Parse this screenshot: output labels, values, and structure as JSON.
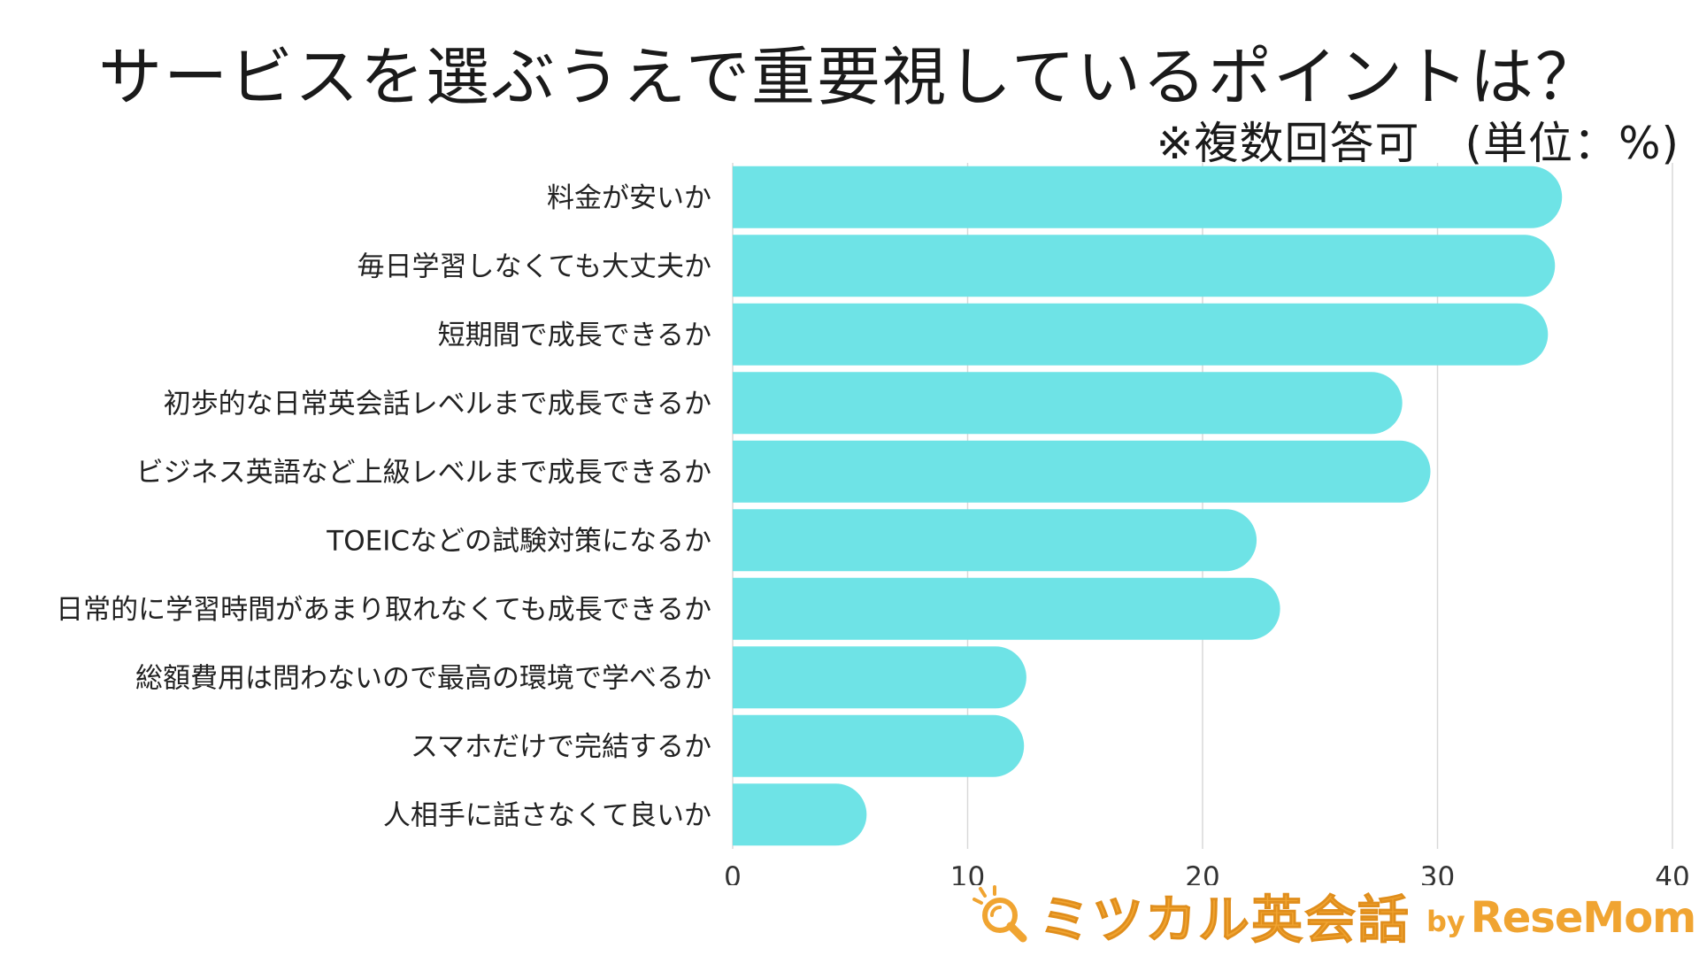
{
  "chart_data": {
    "type": "bar",
    "orientation": "horizontal",
    "title": "サービスを選ぶうえで重要視しているポイントは？",
    "subtitle": "※複数回答可　(単位：%)",
    "categories": [
      "料金が安いか",
      "毎日学習しなくても大丈夫か",
      "短期間で成長できるか",
      "初歩的な日常英会話レベルまで成長できるか",
      "ビジネス英語など上級レベルまで成長できるか",
      "TOEICなどの試験対策になるか",
      "日常的に学習時間があまり取れなくても成長できるか",
      "総額費用は問わないので最高の環境で学べるか",
      "スマホだけで完結するか",
      "人相手に話さなくて良いか"
    ],
    "values": [
      35.3,
      35.0,
      34.7,
      28.5,
      29.7,
      22.3,
      23.3,
      12.5,
      12.4,
      5.7
    ],
    "xlim": [
      0,
      40
    ],
    "xticks": [
      "0",
      "10",
      "20",
      "30",
      "40"
    ],
    "grid": true,
    "bar_color": "#6ee3e6",
    "grid_color": "#d9d9d9"
  },
  "logo": {
    "main_text": "ミツカル英会話",
    "by_text": "by",
    "brand_text": "ReseMom",
    "color": "#f0a431"
  }
}
